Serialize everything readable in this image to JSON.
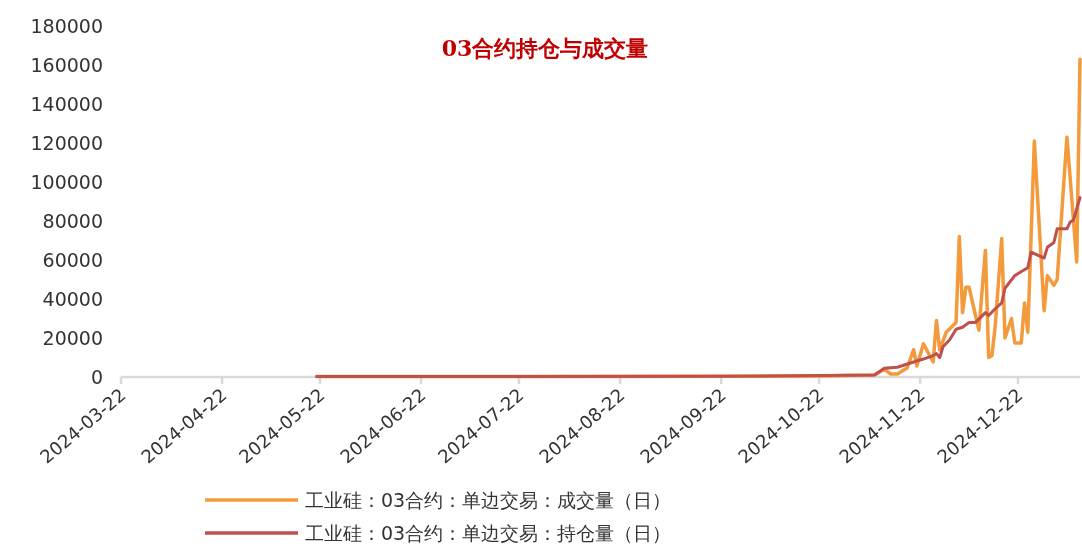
{
  "chart_data": {
    "type": "line",
    "title": "03合约持仓与成交量",
    "legend": "bottom",
    "grid": false,
    "xlim": [
      "2024-03-22",
      "2025-01-10"
    ],
    "xticks": [
      "2024-03-22",
      "2024-04-22",
      "2024-05-22",
      "2024-06-22",
      "2024-07-22",
      "2024-08-22",
      "2024-09-22",
      "2024-10-22",
      "2024-11-22",
      "2024-12-22"
    ],
    "ylim": [
      0,
      180000
    ],
    "yticks": [
      0,
      20000,
      40000,
      60000,
      80000,
      100000,
      120000,
      140000,
      160000,
      180000
    ],
    "series": [
      {
        "name": "工业硅：03合约：单边交易：成交量（日）",
        "color": "#f39a3c",
        "x": [
          "2024-05-21",
          "2024-07-22",
          "2024-09-22",
          "2024-10-22",
          "2024-11-08",
          "2024-11-11",
          "2024-11-13",
          "2024-11-15",
          "2024-11-18",
          "2024-11-20",
          "2024-11-21",
          "2024-11-23",
          "2024-11-26",
          "2024-11-27",
          "2024-11-28",
          "2024-11-30",
          "2024-12-03",
          "2024-12-04",
          "2024-12-05",
          "2024-12-06",
          "2024-12-07",
          "2024-12-10",
          "2024-12-12",
          "2024-12-13",
          "2024-12-14",
          "2024-12-15",
          "2024-12-17",
          "2024-12-18",
          "2024-12-20",
          "2024-12-21",
          "2024-12-23",
          "2024-12-24",
          "2024-12-25",
          "2024-12-27",
          "2024-12-30",
          "2024-12-31",
          "2025-01-02",
          "2025-01-03",
          "2025-01-06",
          "2025-01-09",
          "2025-01-10"
        ],
        "values": [
          300,
          300,
          400,
          500,
          1000,
          4000,
          1500,
          1500,
          4600,
          14000,
          5600,
          17000,
          7700,
          29000,
          14000,
          23000,
          28000,
          72000,
          33000,
          46000,
          46000,
          24000,
          65000,
          10000,
          11000,
          26000,
          71000,
          20000,
          30000,
          17500,
          17500,
          38000,
          23000,
          121000,
          34000,
          52000,
          47000,
          50000,
          123000,
          59000,
          163000
        ]
      },
      {
        "name": "工业硅：03合约：单边交易：持仓量（日）",
        "color": "#c0504d",
        "x": [
          "2024-05-21",
          "2024-07-22",
          "2024-09-22",
          "2024-10-22",
          "2024-11-08",
          "2024-11-11",
          "2024-11-15",
          "2024-11-20",
          "2024-11-23",
          "2024-11-26",
          "2024-11-27",
          "2024-11-28",
          "2024-11-29",
          "2024-12-01",
          "2024-12-03",
          "2024-12-05",
          "2024-12-07",
          "2024-12-09",
          "2024-12-12",
          "2024-12-13",
          "2024-12-15",
          "2024-12-17",
          "2024-12-18",
          "2024-12-21",
          "2024-12-25",
          "2024-12-26",
          "2024-12-30",
          "2024-12-31",
          "2025-01-02",
          "2025-01-03",
          "2025-01-06",
          "2025-01-07",
          "2025-01-08",
          "2025-01-10"
        ],
        "values": [
          200,
          300,
          400,
          800,
          1000,
          4500,
          5000,
          7700,
          9200,
          11000,
          12000,
          10000,
          15500,
          19000,
          24500,
          25500,
          28000,
          28000,
          33000,
          31500,
          35000,
          38000,
          45500,
          52000,
          56000,
          64000,
          61000,
          66500,
          69000,
          76000,
          76000,
          79500,
          80500,
          92000
        ]
      }
    ]
  }
}
